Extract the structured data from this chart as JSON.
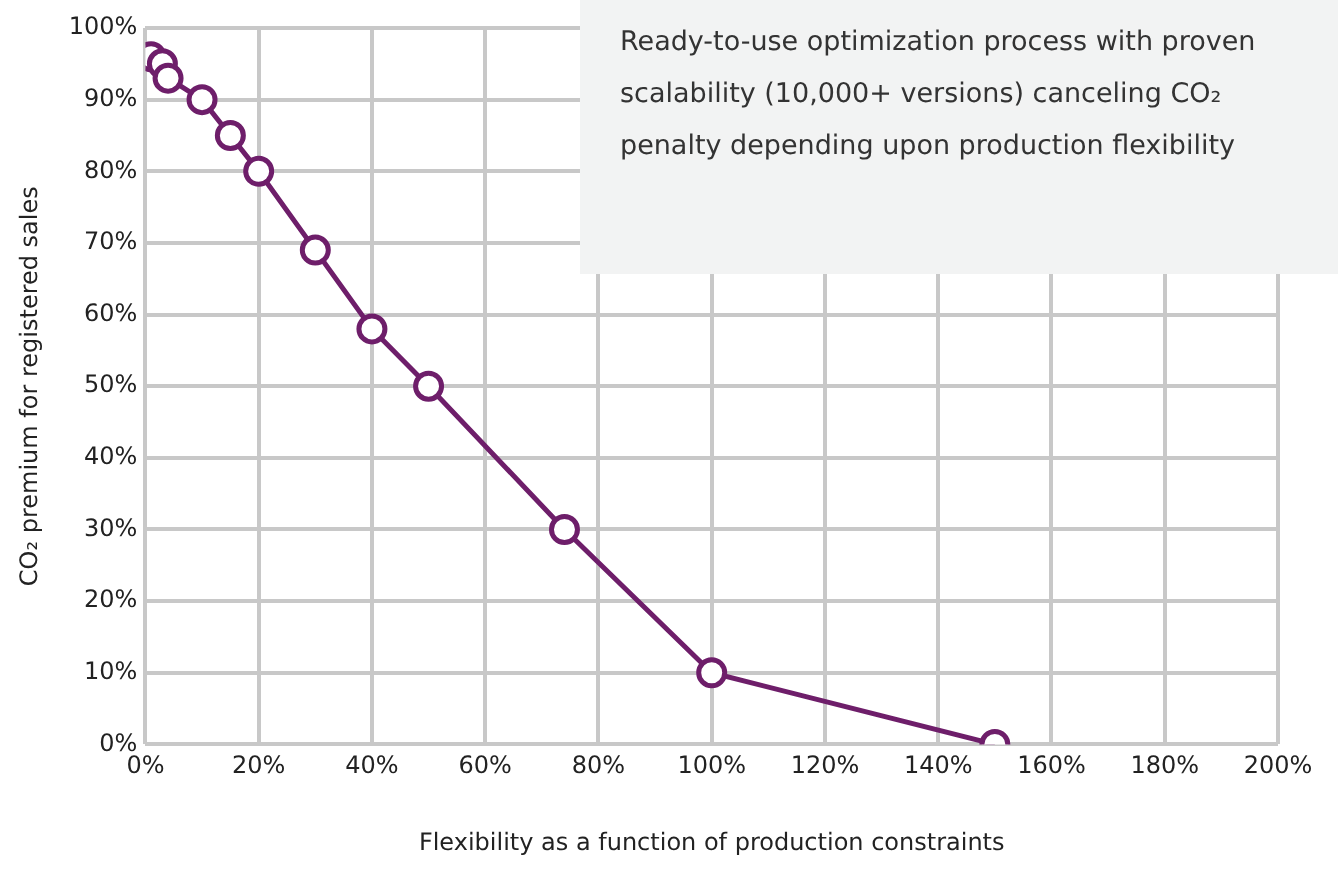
{
  "chart_data": {
    "type": "line",
    "xlabel": "Flexibility as a function of production constraints",
    "ylabel": "CO₂ premium for registered sales",
    "annotations": [
      "Ready-to-use optimization process with proven scalability (10,000+ versions) canceling CO₂ penalty depending upon production flexibility"
    ],
    "x": [
      1,
      3,
      4,
      10,
      15,
      20,
      30,
      40,
      50,
      74,
      100,
      150
    ],
    "series": [
      {
        "color": "#6e1e6a",
        "values": [
          96,
          95,
          93,
          90,
          85,
          80,
          69,
          58,
          50,
          30,
          10,
          0
        ]
      }
    ],
    "xlim": [
      0,
      200
    ],
    "ylim": [
      0,
      100
    ],
    "xticks": [
      {
        "value": 0,
        "label": "0%"
      },
      {
        "value": 20,
        "label": "20%"
      },
      {
        "value": 40,
        "label": "40%"
      },
      {
        "value": 60,
        "label": "60%"
      },
      {
        "value": 80,
        "label": "80%"
      },
      {
        "value": 100,
        "label": "100%"
      },
      {
        "value": 120,
        "label": "120%"
      },
      {
        "value": 140,
        "label": "140%"
      },
      {
        "value": 160,
        "label": "160%"
      },
      {
        "value": 180,
        "label": "180%"
      },
      {
        "value": 200,
        "label": "200%"
      }
    ],
    "yticks": [
      {
        "value": 0,
        "label": "0%"
      },
      {
        "value": 10,
        "label": "10%"
      },
      {
        "value": 20,
        "label": "20%"
      },
      {
        "value": 30,
        "label": "30%"
      },
      {
        "value": 40,
        "label": "40%"
      },
      {
        "value": 50,
        "label": "50%"
      },
      {
        "value": 60,
        "label": "60%"
      },
      {
        "value": 70,
        "label": "70%"
      },
      {
        "value": 80,
        "label": "80%"
      },
      {
        "value": 90,
        "label": "90%"
      },
      {
        "value": 100,
        "label": "100%"
      }
    ],
    "grid": true,
    "legend": false,
    "marker": "circle",
    "line_style": "solid"
  }
}
